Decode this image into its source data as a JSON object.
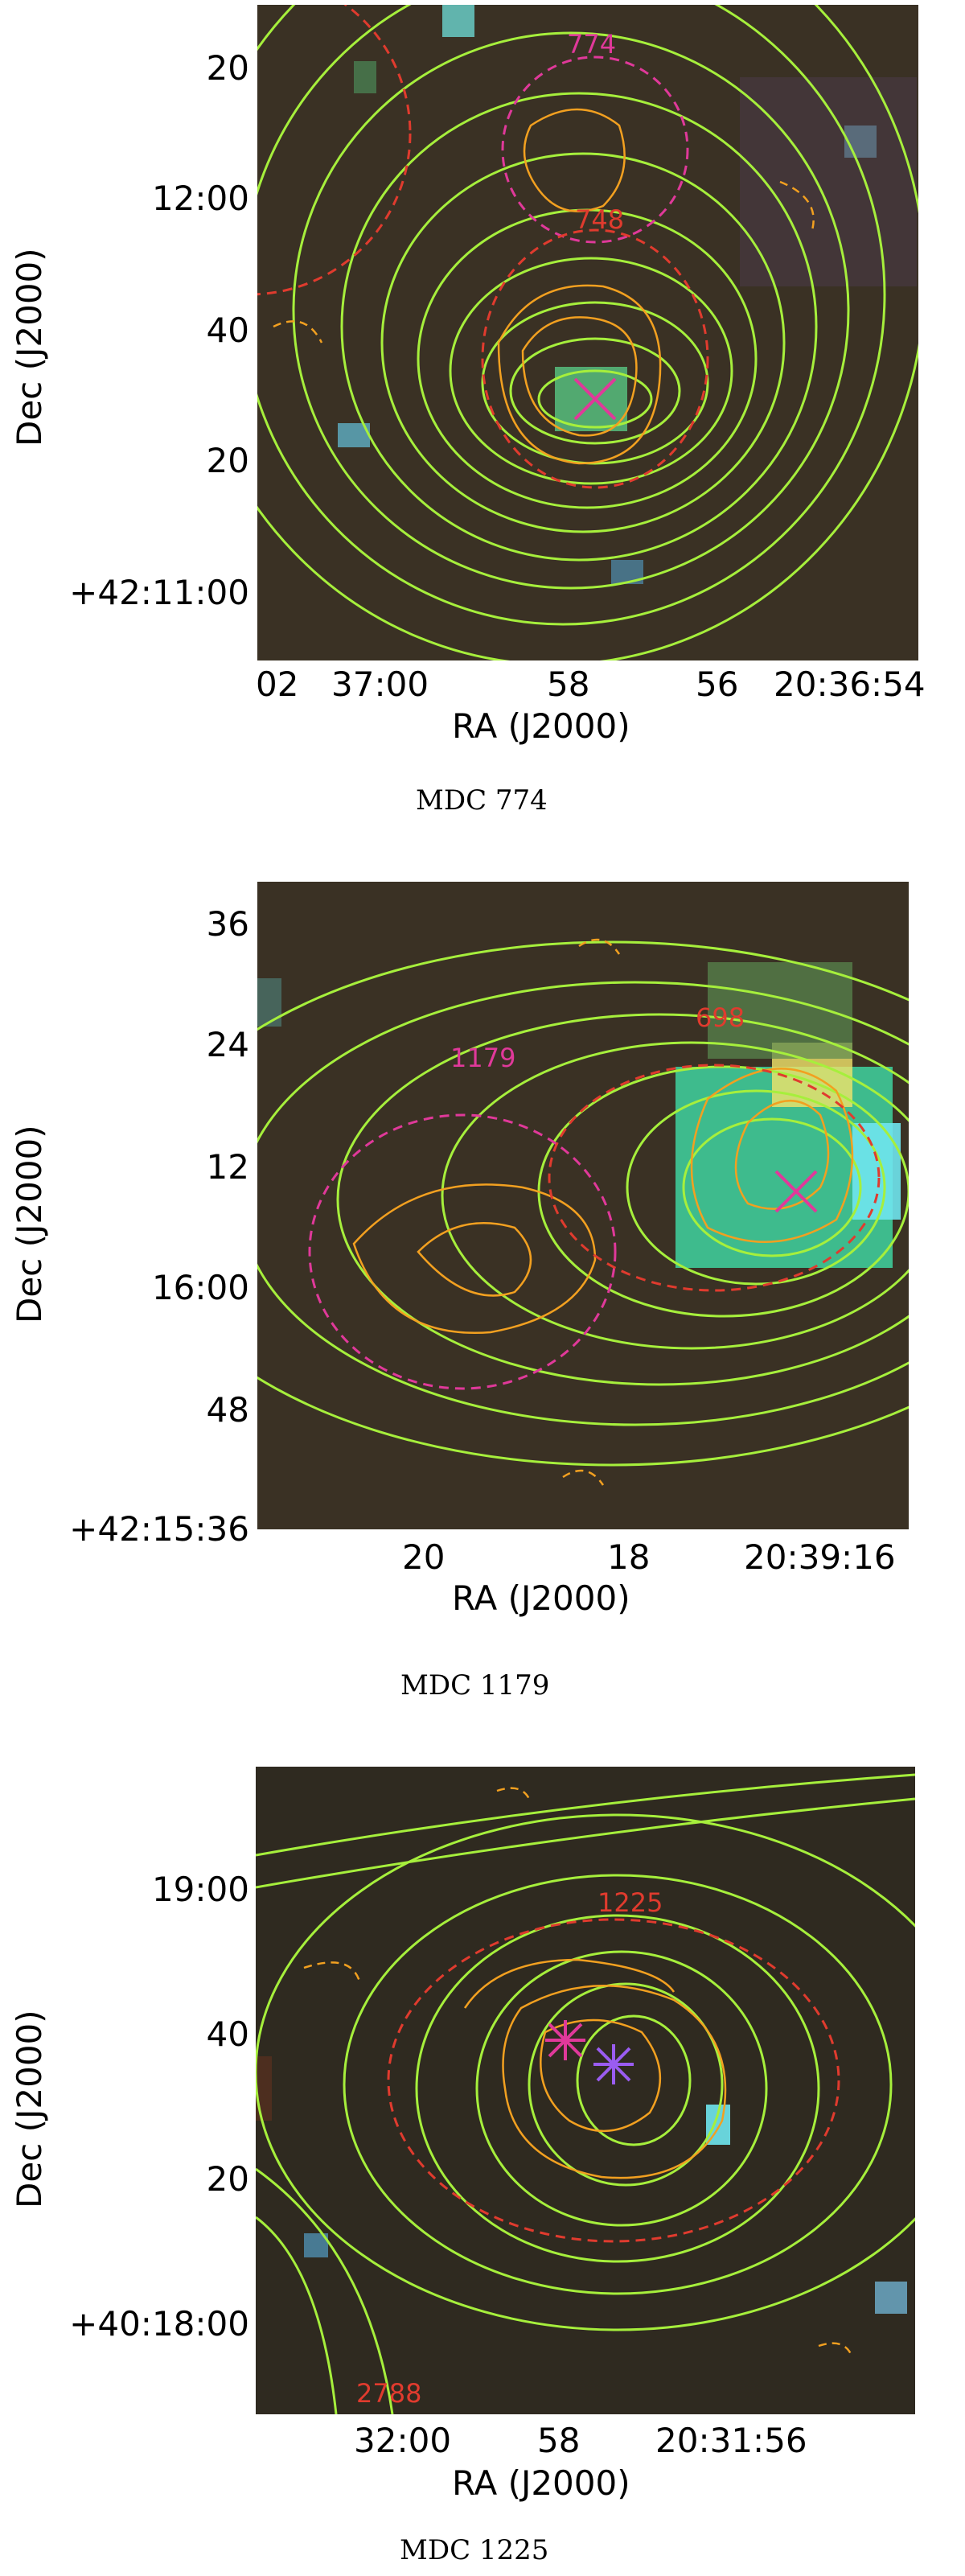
{
  "panels": [
    {
      "caption": "MDC 774",
      "ra_label": "RA (J2000)",
      "dec_label": "Dec (J2000)",
      "ra_ticks": [
        "02",
        "37:00",
        "58",
        "56",
        "20:36:54"
      ],
      "dec_ticks": [
        "20",
        "12:00",
        "40",
        "20",
        "+42:11:00"
      ],
      "sources": [
        "774",
        "748"
      ]
    },
    {
      "caption": "MDC 1179",
      "ra_label": "RA (J2000)",
      "dec_label": "Dec (J2000)",
      "ra_ticks": [
        "20",
        "18",
        "20:39:16"
      ],
      "dec_ticks": [
        "36",
        "24",
        "12",
        "16:00",
        "48",
        "+42:15:36"
      ],
      "sources": [
        "1179",
        "698"
      ]
    },
    {
      "caption": "MDC 1225",
      "ra_label": "RA (J2000)",
      "dec_label": "Dec (J2000)",
      "ra_ticks": [
        "32:00",
        "58",
        "20:31:56"
      ],
      "dec_ticks": [
        "19:00",
        "40",
        "20",
        "+40:18:00"
      ],
      "sources": [
        "1225",
        "2788"
      ]
    }
  ],
  "colors": {
    "background": "#3a3124",
    "green_contour": "#a6ef3c",
    "orange_contour": "#f2a020",
    "magenta": "#e0399a",
    "red": "#e03b2e"
  }
}
